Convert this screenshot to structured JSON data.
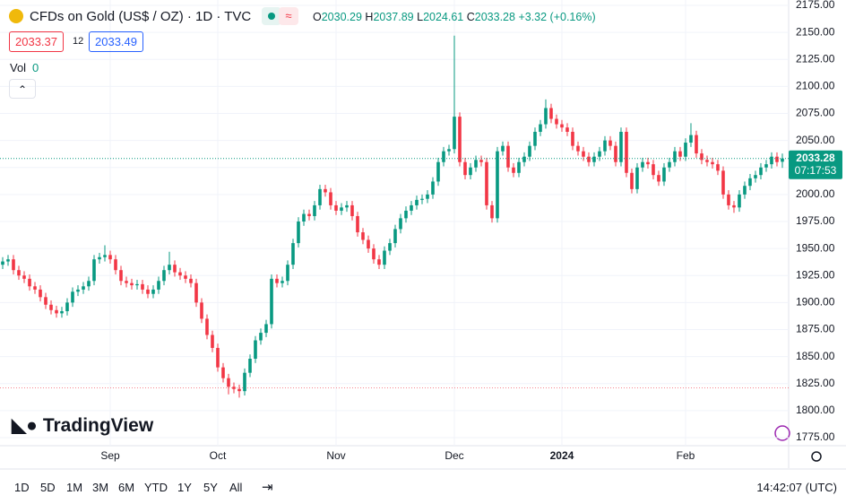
{
  "header": {
    "title": "CFDs on Gold (US$ / OZ) · 1D · TVC",
    "o": "O",
    "h": "H",
    "l": "L",
    "c": "C",
    "change": "+3.32 (+0.16%)",
    "sell": "2033.37",
    "spread": "12",
    "buy": "2033.49",
    "vol_label": "Vol",
    "vol_value": "0",
    "logo": "TradingView"
  },
  "toolbar": {
    "ranges": [
      "1D",
      "5D",
      "1M",
      "3M",
      "6M",
      "YTD",
      "1Y",
      "5Y",
      "All"
    ],
    "clock": "14:42:07 (UTC)"
  },
  "chart_data": {
    "type": "candlestick",
    "up_color": "#089981",
    "down_color": "#f23645",
    "grid": true,
    "countdown": "07:17:53",
    "low_line": 1821,
    "xlim": [
      -0.5,
      146.17
    ],
    "ylim": [
      1767.5,
      2180
    ],
    "xticks": [
      {
        "value": 20,
        "label": "Sep"
      },
      {
        "value": 40,
        "label": "Oct"
      },
      {
        "value": 62,
        "label": "Nov"
      },
      {
        "value": 84,
        "label": "Dec"
      },
      {
        "value": 104,
        "label": "2024"
      },
      {
        "value": 127,
        "label": "Feb"
      }
    ],
    "yticks": [
      {
        "value": 1775,
        "label": "1775.00"
      },
      {
        "value": 1800,
        "label": "1800.00"
      },
      {
        "value": 1825,
        "label": "1825.00"
      },
      {
        "value": 1850,
        "label": "1850.00"
      },
      {
        "value": 1875,
        "label": "1875.00"
      },
      {
        "value": 1900,
        "label": "1900.00"
      },
      {
        "value": 1925,
        "label": "1925.00"
      },
      {
        "value": 1950,
        "label": "1950.00"
      },
      {
        "value": 1975,
        "label": "1975.00"
      },
      {
        "value": 2000,
        "label": "2000.00"
      },
      {
        "value": 2025,
        "label": "2025.00"
      },
      {
        "value": 2050,
        "label": "2050.00"
      },
      {
        "value": 2075,
        "label": "2075.00"
      },
      {
        "value": 2100,
        "label": "2100.00"
      },
      {
        "value": 2125,
        "label": "2125.00"
      },
      {
        "value": 2150,
        "label": "2150.00"
      },
      {
        "value": 2175,
        "label": "2175.00"
      }
    ],
    "series": [
      {
        "ohlc": [
          [
            1935,
            1942,
            1931,
            1938
          ],
          [
            1938,
            1944,
            1934,
            1940
          ],
          [
            1940,
            1944,
            1926,
            1930
          ],
          [
            1930,
            1934,
            1921,
            1925
          ],
          [
            1925,
            1929,
            1918,
            1922
          ],
          [
            1922,
            1926,
            1911,
            1915
          ],
          [
            1915,
            1919,
            1908,
            1912
          ],
          [
            1912,
            1916,
            1901,
            1905
          ],
          [
            1905,
            1909,
            1894,
            1898
          ],
          [
            1898,
            1902,
            1889,
            1893
          ],
          [
            1893,
            1897,
            1886,
            1890
          ],
          [
            1890,
            1896,
            1886,
            1892
          ],
          [
            1892,
            1904,
            1888,
            1900
          ],
          [
            1900,
            1914,
            1896,
            1910
          ],
          [
            1910,
            1916,
            1906,
            1912
          ],
          [
            1912,
            1919,
            1908,
            1915
          ],
          [
            1915,
            1924,
            1911,
            1920
          ],
          [
            1920,
            1944,
            1916,
            1940
          ],
          [
            1940,
            1946,
            1936,
            1942
          ],
          [
            1942,
            1953,
            1938,
            1944
          ],
          [
            1944,
            1948,
            1936,
            1940
          ],
          [
            1940,
            1944,
            1926,
            1930
          ],
          [
            1930,
            1934,
            1916,
            1920
          ],
          [
            1920,
            1924,
            1914,
            1918
          ],
          [
            1918,
            1922,
            1912,
            1916
          ],
          [
            1916,
            1921,
            1912,
            1917
          ],
          [
            1917,
            1921,
            1908,
            1912
          ],
          [
            1912,
            1916,
            1904,
            1908
          ],
          [
            1908,
            1916,
            1904,
            1912
          ],
          [
            1912,
            1924,
            1908,
            1920
          ],
          [
            1920,
            1934,
            1916,
            1930
          ],
          [
            1930,
            1947,
            1926,
            1935
          ],
          [
            1935,
            1939,
            1924,
            1928
          ],
          [
            1928,
            1932,
            1921,
            1925
          ],
          [
            1925,
            1929,
            1918,
            1922
          ],
          [
            1922,
            1926,
            1914,
            1918
          ],
          [
            1918,
            1922,
            1896,
            1900
          ],
          [
            1900,
            1904,
            1881,
            1885
          ],
          [
            1885,
            1889,
            1866,
            1870
          ],
          [
            1870,
            1874,
            1854,
            1858
          ],
          [
            1858,
            1862,
            1836,
            1840
          ],
          [
            1840,
            1844,
            1826,
            1830
          ],
          [
            1830,
            1834,
            1815,
            1822
          ],
          [
            1822,
            1826,
            1816,
            1820
          ],
          [
            1820,
            1824,
            1812,
            1818
          ],
          [
            1818,
            1839,
            1814,
            1835
          ],
          [
            1835,
            1852,
            1831,
            1848
          ],
          [
            1848,
            1869,
            1844,
            1865
          ],
          [
            1865,
            1876,
            1861,
            1872
          ],
          [
            1872,
            1884,
            1868,
            1880
          ],
          [
            1880,
            1926,
            1876,
            1922
          ],
          [
            1922,
            1926,
            1914,
            1918
          ],
          [
            1918,
            1924,
            1914,
            1920
          ],
          [
            1920,
            1939,
            1916,
            1935
          ],
          [
            1935,
            1959,
            1931,
            1955
          ],
          [
            1955,
            1979,
            1951,
            1975
          ],
          [
            1975,
            1986,
            1971,
            1982
          ],
          [
            1982,
            1986,
            1976,
            1980
          ],
          [
            1980,
            1994,
            1976,
            1990
          ],
          [
            1990,
            2009,
            1986,
            2005
          ],
          [
            2005,
            2009,
            1998,
            2002
          ],
          [
            2002,
            2006,
            1986,
            1990
          ],
          [
            1990,
            1994,
            1981,
            1985
          ],
          [
            1985,
            1992,
            1981,
            1988
          ],
          [
            1988,
            1994,
            1984,
            1990
          ],
          [
            1990,
            1994,
            1976,
            1980
          ],
          [
            1980,
            1984,
            1961,
            1965
          ],
          [
            1965,
            1969,
            1954,
            1958
          ],
          [
            1958,
            1962,
            1946,
            1950
          ],
          [
            1950,
            1954,
            1936,
            1940
          ],
          [
            1940,
            1944,
            1931,
            1935
          ],
          [
            1935,
            1952,
            1931,
            1948
          ],
          [
            1948,
            1959,
            1944,
            1955
          ],
          [
            1955,
            1972,
            1951,
            1968
          ],
          [
            1968,
            1982,
            1964,
            1978
          ],
          [
            1978,
            1989,
            1974,
            1985
          ],
          [
            1985,
            1994,
            1981,
            1990
          ],
          [
            1990,
            1999,
            1986,
            1995
          ],
          [
            1995,
            2000,
            1991,
            1996
          ],
          [
            1996,
            2004,
            1992,
            2000
          ],
          [
            2000,
            2016,
            1996,
            2012
          ],
          [
            2012,
            2034,
            2008,
            2030
          ],
          [
            2030,
            2044,
            2026,
            2040
          ],
          [
            2040,
            2046,
            2036,
            2042
          ],
          [
            2042,
            2147,
            2038,
            2072
          ],
          [
            2072,
            2076,
            2026,
            2030
          ],
          [
            2030,
            2034,
            2014,
            2018
          ],
          [
            2018,
            2029,
            2014,
            2025
          ],
          [
            2025,
            2036,
            2021,
            2032
          ],
          [
            2032,
            2036,
            2026,
            2030
          ],
          [
            2030,
            2034,
            1986,
            1990
          ],
          [
            1990,
            1994,
            1974,
            1978
          ],
          [
            1978,
            2044,
            1974,
            2040
          ],
          [
            2040,
            2049,
            2036,
            2045
          ],
          [
            2045,
            2049,
            2021,
            2025
          ],
          [
            2025,
            2029,
            2016,
            2020
          ],
          [
            2020,
            2034,
            2016,
            2030
          ],
          [
            2030,
            2039,
            2026,
            2035
          ],
          [
            2035,
            2049,
            2031,
            2045
          ],
          [
            2045,
            2062,
            2041,
            2058
          ],
          [
            2058,
            2069,
            2054,
            2065
          ],
          [
            2065,
            2088,
            2061,
            2080
          ],
          [
            2080,
            2084,
            2066,
            2070
          ],
          [
            2070,
            2074,
            2061,
            2065
          ],
          [
            2065,
            2069,
            2058,
            2062
          ],
          [
            2062,
            2066,
            2054,
            2058
          ],
          [
            2058,
            2062,
            2041,
            2045
          ],
          [
            2045,
            2049,
            2036,
            2040
          ],
          [
            2040,
            2044,
            2031,
            2035
          ],
          [
            2035,
            2039,
            2026,
            2030
          ],
          [
            2030,
            2039,
            2026,
            2035
          ],
          [
            2035,
            2044,
            2031,
            2040
          ],
          [
            2040,
            2054,
            2036,
            2050
          ],
          [
            2050,
            2054,
            2041,
            2045
          ],
          [
            2045,
            2049,
            2026,
            2030
          ],
          [
            2030,
            2062,
            2026,
            2058
          ],
          [
            2058,
            2062,
            2016,
            2020
          ],
          [
            2020,
            2024,
            2001,
            2005
          ],
          [
            2005,
            2029,
            2001,
            2025
          ],
          [
            2025,
            2034,
            2021,
            2030
          ],
          [
            2030,
            2034,
            2024,
            2028
          ],
          [
            2028,
            2032,
            2014,
            2018
          ],
          [
            2018,
            2022,
            2008,
            2012
          ],
          [
            2012,
            2029,
            2008,
            2025
          ],
          [
            2025,
            2034,
            2021,
            2030
          ],
          [
            2030,
            2044,
            2026,
            2040
          ],
          [
            2040,
            2044,
            2031,
            2035
          ],
          [
            2035,
            2052,
            2031,
            2048
          ],
          [
            2048,
            2066,
            2044,
            2055
          ],
          [
            2055,
            2059,
            2034,
            2038
          ],
          [
            2038,
            2042,
            2028,
            2032
          ],
          [
            2032,
            2036,
            2026,
            2030
          ],
          [
            2030,
            2034,
            2024,
            2028
          ],
          [
            2028,
            2032,
            2018,
            2022
          ],
          [
            2022,
            2026,
            1996,
            2000
          ],
          [
            2000,
            2004,
            1986,
            1990
          ],
          [
            1990,
            1994,
            1983,
            1988
          ],
          [
            1988,
            2004,
            1984,
            2000
          ],
          [
            2000,
            2012,
            1996,
            2008
          ],
          [
            2008,
            2019,
            2004,
            2015
          ],
          [
            2015,
            2022,
            2011,
            2018
          ],
          [
            2018,
            2029,
            2014,
            2025
          ],
          [
            2025,
            2032,
            2021,
            2028
          ],
          [
            2028,
            2039,
            2024,
            2035
          ],
          [
            2035,
            2039,
            2026,
            2030
          ],
          [
            2030.29,
            2037.89,
            2024.61,
            2033.28
          ]
        ]
      }
    ]
  }
}
